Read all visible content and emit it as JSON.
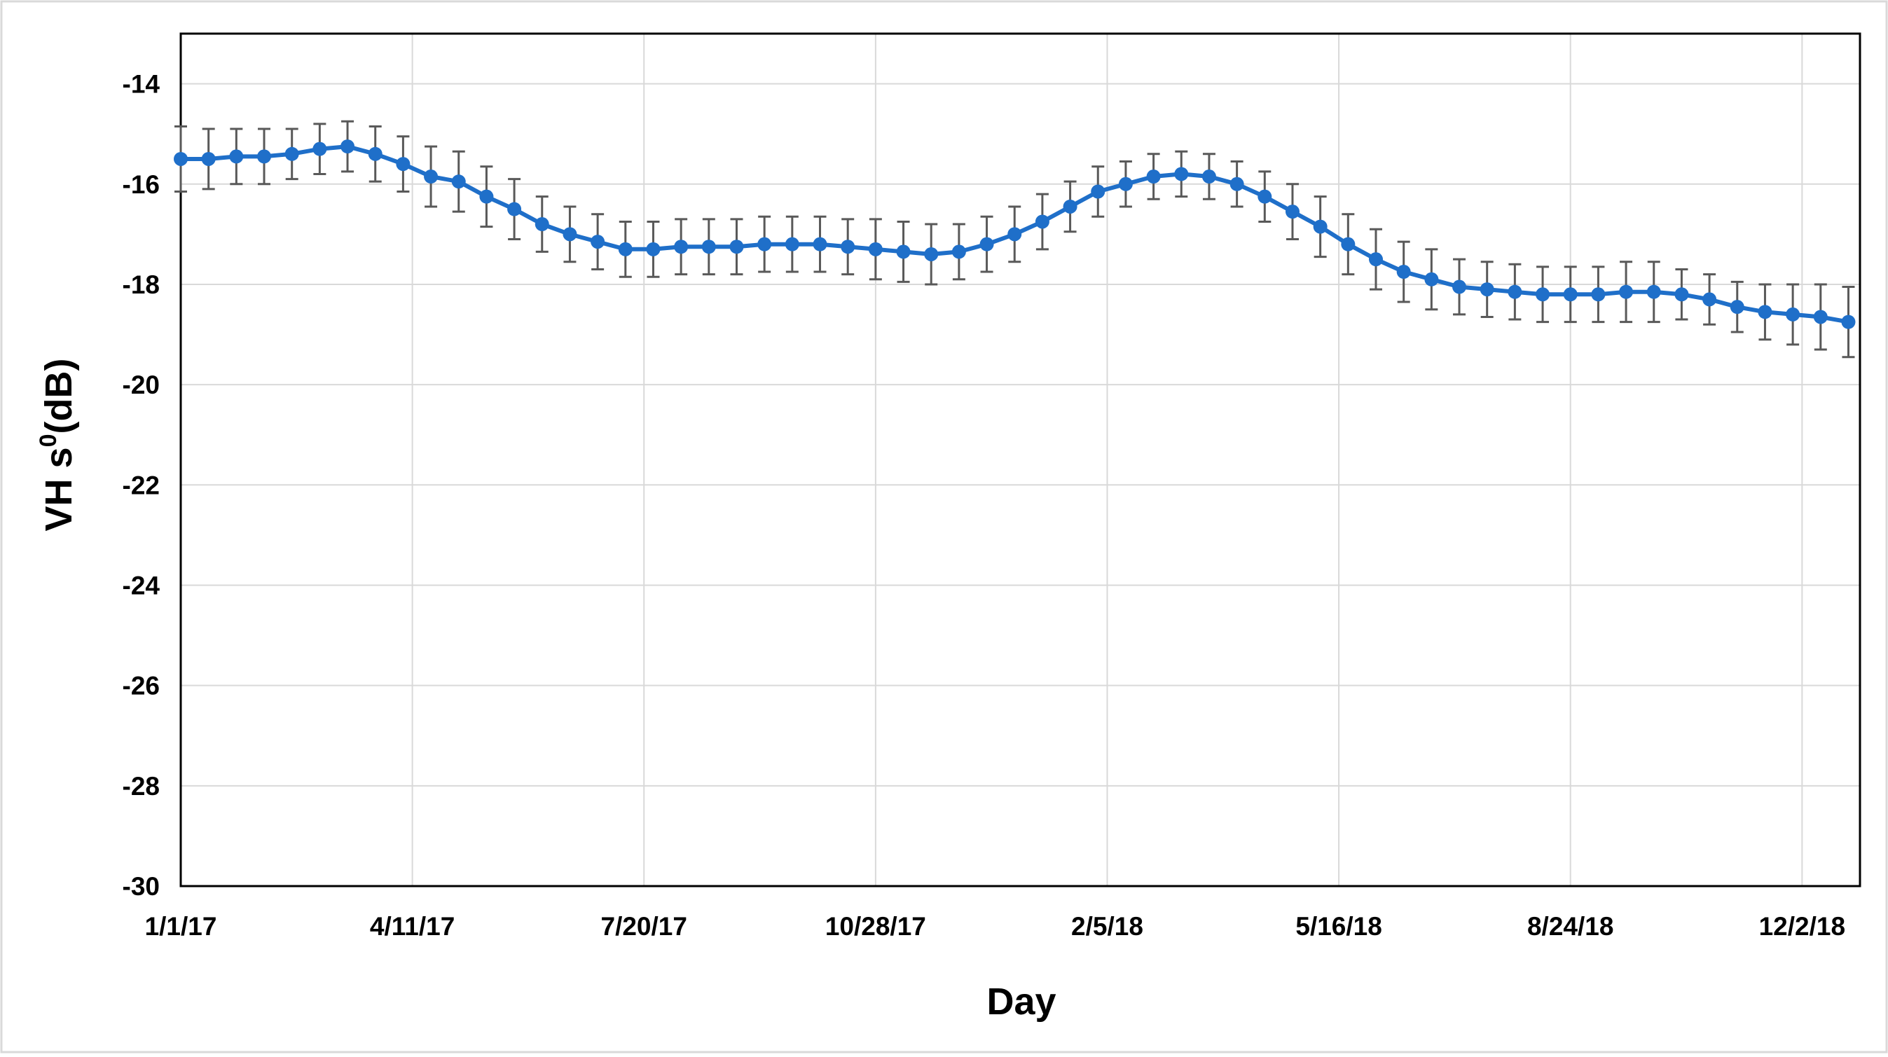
{
  "chart_data": {
    "type": "line",
    "title": "",
    "xlabel": "Day",
    "ylabel": {
      "prefix": "VH s",
      "superscript": "0",
      "suffix": "(dB)"
    },
    "ylim": [
      -30,
      -13
    ],
    "yticks": [
      -14,
      -16,
      -18,
      -20,
      -22,
      -24,
      -26,
      -28,
      -30
    ],
    "xlim": [
      "2017-01-01",
      "2018-12-27"
    ],
    "xticks": [
      {
        "date": "2017-01-01",
        "label": "1/1/17"
      },
      {
        "date": "2017-04-11",
        "label": "4/11/17"
      },
      {
        "date": "2017-07-20",
        "label": "7/20/17"
      },
      {
        "date": "2017-10-28",
        "label": "10/28/17"
      },
      {
        "date": "2018-02-05",
        "label": "2/5/18"
      },
      {
        "date": "2018-05-16",
        "label": "5/16/18"
      },
      {
        "date": "2018-08-24",
        "label": "8/24/18"
      },
      {
        "date": "2018-12-02",
        "label": "12/2/18"
      }
    ],
    "grid": true,
    "colors": {
      "line": "#1f6fc9",
      "error_bar": "#595959",
      "grid": "#d9d9d9",
      "axis": "#000000"
    },
    "series": [
      {
        "x": [
          "2017-01-01",
          "2017-01-13",
          "2017-01-25",
          "2017-02-06",
          "2017-02-18",
          "2017-03-02",
          "2017-03-14",
          "2017-03-26",
          "2017-04-07",
          "2017-04-19",
          "2017-05-01",
          "2017-05-13",
          "2017-05-25",
          "2017-06-06",
          "2017-06-18",
          "2017-06-30",
          "2017-07-12",
          "2017-07-24",
          "2017-08-05",
          "2017-08-17",
          "2017-08-29",
          "2017-09-10",
          "2017-09-22",
          "2017-10-04",
          "2017-10-16",
          "2017-10-28",
          "2017-11-09",
          "2017-11-21",
          "2017-12-03",
          "2017-12-15",
          "2017-12-27",
          "2018-01-08",
          "2018-01-20",
          "2018-02-01",
          "2018-02-13",
          "2018-02-25",
          "2018-03-09",
          "2018-03-21",
          "2018-04-02",
          "2018-04-14",
          "2018-04-26",
          "2018-05-08",
          "2018-05-20",
          "2018-06-01",
          "2018-06-13",
          "2018-06-25",
          "2018-07-07",
          "2018-07-19",
          "2018-07-31",
          "2018-08-12",
          "2018-08-24",
          "2018-09-05",
          "2018-09-17",
          "2018-09-29",
          "2018-10-11",
          "2018-10-23",
          "2018-11-04",
          "2018-11-16",
          "2018-11-28",
          "2018-12-10",
          "2018-12-22"
        ],
        "y": [
          -15.5,
          -15.5,
          -15.45,
          -15.45,
          -15.4,
          -15.3,
          -15.25,
          -15.4,
          -15.6,
          -15.85,
          -15.95,
          -16.25,
          -16.5,
          -16.8,
          -17.0,
          -17.15,
          -17.3,
          -17.3,
          -17.25,
          -17.25,
          -17.25,
          -17.2,
          -17.2,
          -17.2,
          -17.25,
          -17.3,
          -17.35,
          -17.4,
          -17.35,
          -17.2,
          -17.0,
          -16.75,
          -16.45,
          -16.15,
          -16.0,
          -15.85,
          -15.8,
          -15.85,
          -16.0,
          -16.25,
          -16.55,
          -16.85,
          -17.2,
          -17.5,
          -17.75,
          -17.9,
          -18.05,
          -18.1,
          -18.15,
          -18.2,
          -18.2,
          -18.2,
          -18.15,
          -18.15,
          -18.2,
          -18.3,
          -18.45,
          -18.55,
          -18.6,
          -18.65,
          -18.75
        ],
        "error": [
          0.65,
          0.6,
          0.55,
          0.55,
          0.5,
          0.5,
          0.5,
          0.55,
          0.55,
          0.6,
          0.6,
          0.6,
          0.6,
          0.55,
          0.55,
          0.55,
          0.55,
          0.55,
          0.55,
          0.55,
          0.55,
          0.55,
          0.55,
          0.55,
          0.55,
          0.6,
          0.6,
          0.6,
          0.55,
          0.55,
          0.55,
          0.55,
          0.5,
          0.5,
          0.45,
          0.45,
          0.45,
          0.45,
          0.45,
          0.5,
          0.55,
          0.6,
          0.6,
          0.6,
          0.6,
          0.6,
          0.55,
          0.55,
          0.55,
          0.55,
          0.55,
          0.55,
          0.6,
          0.6,
          0.5,
          0.5,
          0.5,
          0.55,
          0.6,
          0.65,
          0.7
        ]
      }
    ]
  }
}
